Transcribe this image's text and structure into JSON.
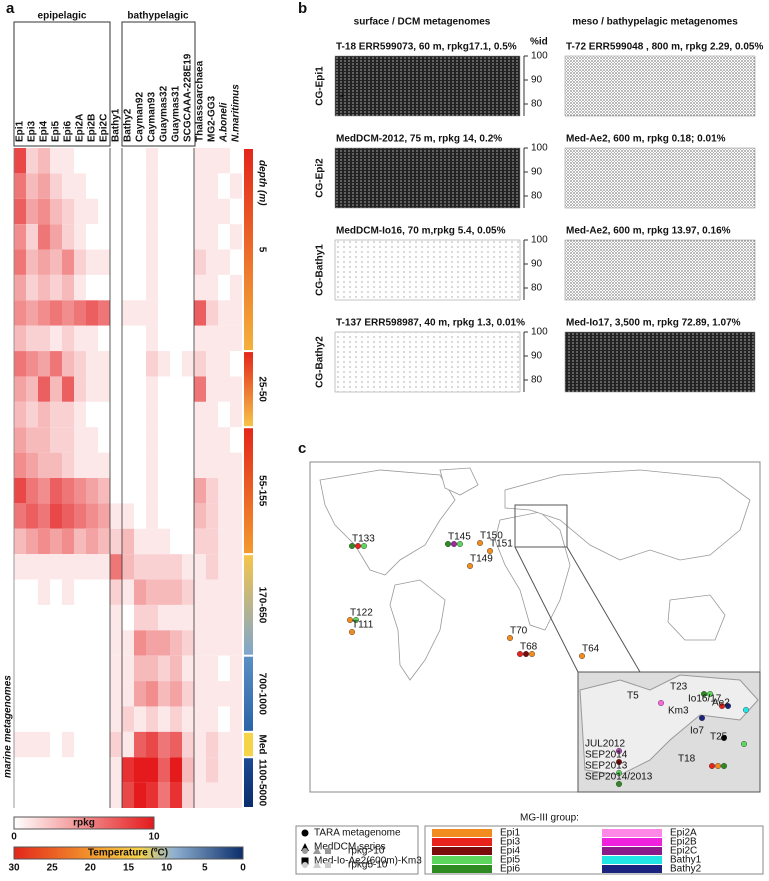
{
  "panel_a": {
    "letter": "a",
    "column_groups": [
      "epipelagic",
      "bathypelagic"
    ],
    "columns": [
      "Epi1",
      "Epi3",
      "Epi4",
      "Epi5",
      "Epi6",
      "Epi2A",
      "Epi2B",
      "Epi2C",
      "Bathy1",
      "Bathy2",
      "Cayman92",
      "Cayman93",
      "Guaymas32",
      "Guaymas31",
      "SCGCAAA-228E19",
      "Thalassoarchaea",
      "MG2-GG3",
      "A.boneli",
      "N.maritimus"
    ],
    "side_label": "marine metagenomes",
    "depth_label": "depth (m)",
    "color": "#e41a1c",
    "groups": [
      {
        "label": "5",
        "colors": [
          "#e3261b",
          "#f4b13a"
        ],
        "rows": [
          [
            8,
            2,
            3,
            1,
            1,
            0,
            0,
            0,
            0,
            0,
            0,
            1,
            0,
            0,
            0,
            1,
            1,
            1,
            0
          ],
          [
            6,
            3,
            4,
            2,
            1,
            1,
            0,
            0,
            0,
            0,
            0,
            1,
            0,
            0,
            0,
            1,
            1,
            0,
            1
          ],
          [
            7,
            4,
            5,
            3,
            2,
            1,
            1,
            0,
            0,
            0,
            0,
            1,
            0,
            0,
            0,
            1,
            1,
            1,
            0
          ],
          [
            5,
            2,
            6,
            4,
            2,
            1,
            0,
            0,
            0,
            0,
            0,
            1,
            0,
            0,
            0,
            1,
            1,
            0,
            1
          ],
          [
            6,
            3,
            4,
            3,
            5,
            2,
            1,
            1,
            0,
            0,
            0,
            1,
            0,
            0,
            0,
            2,
            1,
            1,
            0
          ],
          [
            4,
            2,
            3,
            2,
            3,
            1,
            0,
            0,
            0,
            0,
            0,
            1,
            0,
            0,
            0,
            1,
            1,
            0,
            1
          ],
          [
            5,
            4,
            5,
            6,
            5,
            6,
            7,
            6,
            0,
            1,
            1,
            1,
            0,
            0,
            0,
            7,
            2,
            1,
            1
          ],
          [
            3,
            2,
            2,
            1,
            2,
            1,
            1,
            0,
            0,
            0,
            0,
            1,
            0,
            0,
            0,
            1,
            1,
            1,
            1
          ]
        ]
      },
      {
        "label": "25-50",
        "colors": [
          "#e3261b",
          "#f6c44a"
        ],
        "rows": [
          [
            6,
            5,
            4,
            6,
            3,
            2,
            1,
            1,
            0,
            0,
            0,
            2,
            1,
            0,
            1,
            2,
            1,
            1,
            0
          ],
          [
            4,
            3,
            7,
            3,
            7,
            2,
            1,
            1,
            0,
            0,
            0,
            1,
            0,
            0,
            0,
            6,
            1,
            1,
            1
          ],
          [
            3,
            2,
            3,
            2,
            2,
            1,
            0,
            0,
            0,
            0,
            0,
            1,
            0,
            0,
            0,
            1,
            1,
            0,
            1
          ]
        ]
      },
      {
        "label": "55-155",
        "colors": [
          "#e3261b",
          "#f39a2e"
        ],
        "rows": [
          [
            4,
            3,
            3,
            2,
            2,
            1,
            1,
            0,
            0,
            0,
            0,
            1,
            0,
            0,
            0,
            1,
            1,
            1,
            0
          ],
          [
            5,
            4,
            3,
            3,
            2,
            1,
            1,
            1,
            0,
            0,
            0,
            1,
            0,
            0,
            0,
            1,
            1,
            1,
            1
          ],
          [
            8,
            6,
            5,
            7,
            6,
            5,
            4,
            3,
            0,
            0,
            0,
            1,
            0,
            0,
            0,
            4,
            2,
            1,
            1
          ],
          [
            6,
            7,
            6,
            8,
            7,
            6,
            5,
            4,
            1,
            1,
            0,
            1,
            0,
            0,
            0,
            3,
            2,
            1,
            1
          ],
          [
            3,
            4,
            5,
            4,
            5,
            3,
            4,
            3,
            2,
            3,
            1,
            1,
            1,
            0,
            0,
            2,
            2,
            1,
            1
          ]
        ]
      },
      {
        "label": "170-650",
        "colors": [
          "#f6c44a",
          "#7fa6cc"
        ],
        "rows": [
          [
            1,
            1,
            1,
            1,
            1,
            1,
            1,
            1,
            6,
            3,
            2,
            2,
            2,
            2,
            1,
            1,
            2,
            1,
            1
          ],
          [
            0,
            0,
            1,
            0,
            1,
            0,
            0,
            0,
            2,
            1,
            4,
            3,
            3,
            3,
            2,
            1,
            1,
            1,
            1
          ],
          [
            0,
            0,
            0,
            0,
            0,
            0,
            0,
            0,
            1,
            0,
            2,
            2,
            1,
            1,
            1,
            1,
            1,
            1,
            1
          ],
          [
            0,
            0,
            0,
            0,
            0,
            0,
            0,
            0,
            1,
            1,
            5,
            4,
            4,
            3,
            2,
            1,
            1,
            1,
            1
          ]
        ]
      },
      {
        "label": "700-1000",
        "colors": [
          "#5b8fc4",
          "#2a64a8"
        ],
        "rows": [
          [
            0,
            0,
            0,
            0,
            0,
            0,
            0,
            0,
            1,
            1,
            3,
            3,
            2,
            3,
            1,
            1,
            1,
            0,
            1
          ],
          [
            0,
            0,
            0,
            0,
            0,
            0,
            0,
            0,
            1,
            1,
            4,
            5,
            3,
            4,
            2,
            1,
            1,
            1,
            1
          ],
          [
            0,
            0,
            0,
            0,
            0,
            0,
            0,
            0,
            1,
            2,
            1,
            2,
            1,
            2,
            1,
            1,
            1,
            0,
            1
          ]
        ]
      },
      {
        "label": "Med",
        "colors": [
          "#f5d44a",
          "#f5d44a"
        ],
        "rows": [
          [
            1,
            1,
            1,
            0,
            1,
            0,
            0,
            0,
            2,
            1,
            7,
            8,
            6,
            7,
            2,
            1,
            2,
            1,
            1
          ]
        ]
      },
      {
        "label": "1100-5000",
        "colors": [
          "#1c4a94",
          "#0b2d6b"
        ],
        "rows": [
          [
            0,
            0,
            0,
            0,
            0,
            0,
            0,
            0,
            1,
            9,
            10,
            10,
            7,
            10,
            3,
            1,
            2,
            1,
            1
          ],
          [
            0,
            0,
            0,
            0,
            0,
            0,
            0,
            0,
            1,
            8,
            10,
            9,
            6,
            9,
            2,
            1,
            1,
            1,
            1
          ]
        ]
      }
    ],
    "rpkg_scale": {
      "label": "rpkg",
      "lim": [
        0,
        10
      ],
      "ticks": [
        0,
        10
      ]
    },
    "temperature_scale": {
      "label": "Temperature (ºC)",
      "lim": [
        30,
        0
      ],
      "ticks": [
        30,
        25,
        20,
        15,
        10,
        5,
        0
      ]
    }
  },
  "panel_b": {
    "letter": "b",
    "headers": [
      "surface / DCM metagenomes",
      "meso / bathypelagic metagenomes"
    ],
    "ylabel": "%id",
    "ylim": [
      75,
      100
    ],
    "yticks": [
      80,
      90,
      100
    ],
    "annotation": "*",
    "rows": [
      {
        "label": "CG-Epi1",
        "left": "T-18 ERR599073, 60 m, rpkg17.1, 0.5%",
        "right": "T-72 ERR599048 , 800 m, rpkg 2.29, 0.05%"
      },
      {
        "label": "CG-Epi2",
        "left": "MedDCM-2012, 75 m, rpkg 14, 0.2%",
        "right": "Med-Ae2, 600 m, rpkg 0.18; 0.01%"
      },
      {
        "label": "CG-Bathy1",
        "left": "MedDCM-Io16, 70 m,rpkg 5.4, 0.05%",
        "right": "Med-Ae2, 600 m, rpkg 13.97, 0.16%"
      },
      {
        "label": "CG-Bathy2",
        "left": "T-137 ERR598987, 40 m, rpkg 1.3, 0.01%",
        "right": "Med-Io17, 3,500 m, rpkg 72.89, 1.07%"
      }
    ]
  },
  "panel_c": {
    "letter": "c",
    "stations": [
      {
        "label": "T133",
        "color": "#000000",
        "markers": [
          "#2e8b22",
          "#e8231c",
          "#5cd65c"
        ]
      },
      {
        "label": "T145",
        "color": "#000000",
        "markers": [
          "#2e8b22",
          "#9b2a9b",
          "#5cd65c"
        ]
      },
      {
        "label": "T149",
        "color": "#f28c1e",
        "markers": [
          "#f28c1e"
        ]
      },
      {
        "label": "T150",
        "color": "#f28c1e",
        "markers": [
          "#f28c1e"
        ]
      },
      {
        "label": "T151",
        "color": "#f28c1e",
        "markers": [
          "#f28c1e"
        ]
      },
      {
        "label": "T122",
        "color": "#000000",
        "markers": [
          "#f28c1e",
          "#5cd65c"
        ]
      },
      {
        "label": "T111",
        "color": "#000000",
        "markers": [
          "#f28c1e"
        ]
      },
      {
        "label": "T70",
        "color": "#000000",
        "markers": [
          "#f28c1e"
        ]
      },
      {
        "label": "T68",
        "color": "#000000",
        "markers": [
          "#e8231c",
          "#7a0c0c",
          "#f28c1e"
        ]
      },
      {
        "label": "T64",
        "color": "#000000",
        "markers": [
          "#f28c1e"
        ]
      }
    ],
    "inset_stations": [
      {
        "label": "T5",
        "color": "#000000",
        "markers": [
          "#ff66dd"
        ]
      },
      {
        "label": "T23",
        "color": "#000000",
        "markers": [
          "#2e8b22",
          "#5cd65c"
        ]
      },
      {
        "label": "Io16/17",
        "color": "#000000",
        "markers": [
          "#e8231c",
          "#1a237e"
        ]
      },
      {
        "label": "Ae2",
        "color": "#000000",
        "markers": [
          "#22e6e6"
        ]
      },
      {
        "label": "Km3",
        "color": "#000000",
        "markers": [
          "#1a237e"
        ]
      },
      {
        "label": "Io7",
        "color": "#000000",
        "markers": [
          "#000000"
        ]
      },
      {
        "label": "T25",
        "color": "#000000",
        "markers": [
          "#5cd65c"
        ]
      },
      {
        "label": "T18",
        "color": "#000000",
        "markers": [
          "#e8231c",
          "#f28c1e",
          "#2e8b22"
        ]
      },
      {
        "label": "JUL2012",
        "color": "#000000",
        "markers": [
          "#b04ab0"
        ]
      },
      {
        "label": "SEP2014",
        "color": "#000000",
        "markers": [
          "#7a0c0c"
        ]
      },
      {
        "label": "SEP2013",
        "color": "#000000",
        "markers": [
          "#5cd65c"
        ]
      },
      {
        "label": "SEP2014/2013",
        "color": "#000000",
        "markers": [
          "#2e8b22"
        ]
      }
    ],
    "legend_title": "MG-III group:",
    "symbols": [
      "TARA metagenome",
      "MedDCM series",
      "Med-Io-Ae2(600m)-Km3",
      "rpkg>10",
      "rpkg5-10"
    ],
    "groups": [
      {
        "name": "Epi1",
        "color": "#f28c1e"
      },
      {
        "name": "Epi3",
        "color": "#e8231c"
      },
      {
        "name": "Epi4",
        "color": "#7a0c0c"
      },
      {
        "name": "Epi5",
        "color": "#5cd65c"
      },
      {
        "name": "Epi6",
        "color": "#2e8b22"
      },
      {
        "name": "Epi2A",
        "color": "#ff88e6"
      },
      {
        "name": "Epi2B",
        "color": "#ee22dd"
      },
      {
        "name": "Epi2C",
        "color": "#8b1a8b"
      },
      {
        "name": "Bathy1",
        "color": "#22e6e6"
      },
      {
        "name": "Bathy2",
        "color": "#1a237e"
      }
    ]
  }
}
